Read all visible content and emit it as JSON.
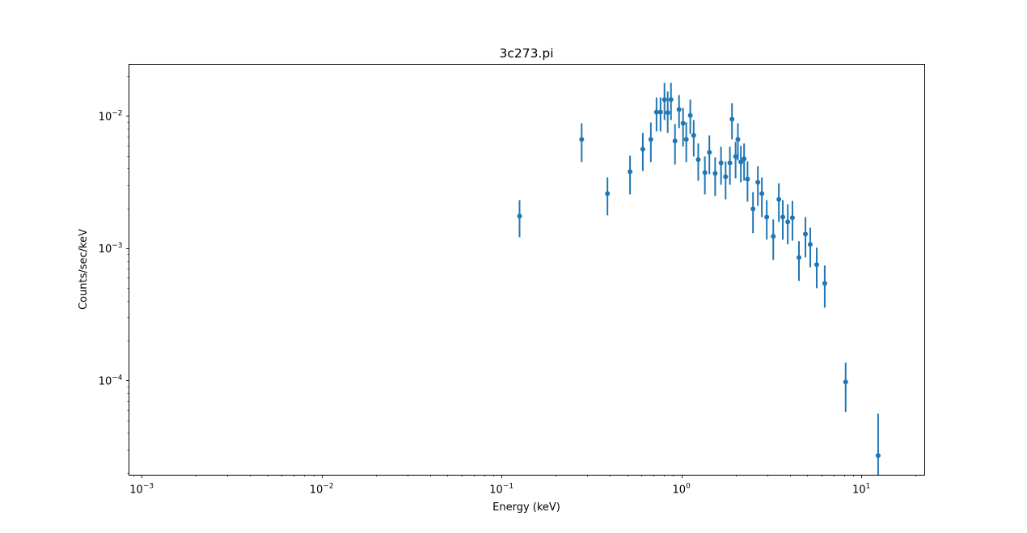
{
  "chart_data": {
    "type": "scatter",
    "subtype": "errorbar",
    "title": "3c273.pi",
    "xlabel": "Energy (keV)",
    "ylabel": "Counts/sec/keV",
    "xscale": "log",
    "yscale": "log",
    "xlim": [
      0.00085,
      22.5
    ],
    "ylim": [
      1.92e-05,
      0.0246
    ],
    "grid": false,
    "legend": null,
    "x_ticks": [
      {
        "value": 0.001,
        "base": "10",
        "exp": "−3"
      },
      {
        "value": 0.01,
        "base": "10",
        "exp": "−2"
      },
      {
        "value": 0.1,
        "base": "10",
        "exp": "−1"
      },
      {
        "value": 1,
        "base": "10",
        "exp": "0"
      },
      {
        "value": 10,
        "base": "10",
        "exp": "1"
      }
    ],
    "y_ticks": [
      {
        "value": 0.01,
        "base": "10",
        "exp": "−2"
      },
      {
        "value": 0.001,
        "base": "10",
        "exp": "−3"
      },
      {
        "value": 0.0001,
        "base": "10",
        "exp": "−4"
      }
    ],
    "color": "#1f77b4",
    "series": [
      {
        "name": "3c273.pi",
        "points": [
          {
            "x": 0.126,
            "y": 0.00175,
            "ylo": 0.00121,
            "yhi": 0.00231
          },
          {
            "x": 0.279,
            "y": 0.00665,
            "ylo": 0.00448,
            "yhi": 0.00881
          },
          {
            "x": 0.388,
            "y": 0.00259,
            "ylo": 0.00177,
            "yhi": 0.00343
          },
          {
            "x": 0.518,
            "y": 0.00379,
            "ylo": 0.00255,
            "yhi": 0.00501
          },
          {
            "x": 0.61,
            "y": 0.00561,
            "ylo": 0.00384,
            "yhi": 0.00744
          },
          {
            "x": 0.676,
            "y": 0.00665,
            "ylo": 0.00448,
            "yhi": 0.00893
          },
          {
            "x": 0.727,
            "y": 0.0107,
            "ylo": 0.00765,
            "yhi": 0.0138
          },
          {
            "x": 0.765,
            "y": 0.0107,
            "ylo": 0.00765,
            "yhi": 0.0138
          },
          {
            "x": 0.805,
            "y": 0.0133,
            "ylo": 0.00932,
            "yhi": 0.0178
          },
          {
            "x": 0.839,
            "y": 0.0106,
            "ylo": 0.00744,
            "yhi": 0.0153
          },
          {
            "x": 0.875,
            "y": 0.0133,
            "ylo": 0.00932,
            "yhi": 0.0178
          },
          {
            "x": 0.921,
            "y": 0.00646,
            "ylo": 0.00429,
            "yhi": 0.00869
          },
          {
            "x": 0.97,
            "y": 0.0112,
            "ylo": 0.0081,
            "yhi": 0.0144
          },
          {
            "x": 1.021,
            "y": 0.00881,
            "ylo": 0.00586,
            "yhi": 0.0115
          },
          {
            "x": 1.064,
            "y": 0.00665,
            "ylo": 0.00448,
            "yhi": 0.00893
          },
          {
            "x": 1.12,
            "y": 0.0101,
            "ylo": 0.00733,
            "yhi": 0.0133
          },
          {
            "x": 1.17,
            "y": 0.00713,
            "ylo": 0.00494,
            "yhi": 0.00932
          },
          {
            "x": 1.24,
            "y": 0.00468,
            "ylo": 0.00324,
            "yhi": 0.0062
          },
          {
            "x": 1.35,
            "y": 0.00373,
            "ylo": 0.00255,
            "yhi": 0.00494
          },
          {
            "x": 1.43,
            "y": 0.00531,
            "ylo": 0.00363,
            "yhi": 0.00713
          },
          {
            "x": 1.54,
            "y": 0.00368,
            "ylo": 0.00248,
            "yhi": 0.00487
          },
          {
            "x": 1.66,
            "y": 0.00442,
            "ylo": 0.00302,
            "yhi": 0.00586
          },
          {
            "x": 1.76,
            "y": 0.00347,
            "ylo": 0.00234,
            "yhi": 0.00454
          },
          {
            "x": 1.86,
            "y": 0.00442,
            "ylo": 0.00302,
            "yhi": 0.00586
          },
          {
            "x": 1.91,
            "y": 0.00945,
            "ylo": 0.00665,
            "yhi": 0.0125
          },
          {
            "x": 2.0,
            "y": 0.00494,
            "ylo": 0.00338,
            "yhi": 0.00637
          },
          {
            "x": 2.06,
            "y": 0.00665,
            "ylo": 0.00461,
            "yhi": 0.00881
          },
          {
            "x": 2.14,
            "y": 0.00448,
            "ylo": 0.00315,
            "yhi": 0.00594
          },
          {
            "x": 2.23,
            "y": 0.00474,
            "ylo": 0.00324,
            "yhi": 0.0062
          },
          {
            "x": 2.33,
            "y": 0.00333,
            "ylo": 0.00225,
            "yhi": 0.00454
          },
          {
            "x": 2.5,
            "y": 0.00198,
            "ylo": 0.0013,
            "yhi": 0.00266
          },
          {
            "x": 2.66,
            "y": 0.00315,
            "ylo": 0.00209,
            "yhi": 0.00418
          },
          {
            "x": 2.8,
            "y": 0.00259,
            "ylo": 0.00172,
            "yhi": 0.00343
          },
          {
            "x": 2.98,
            "y": 0.00172,
            "ylo": 0.00116,
            "yhi": 0.00231
          },
          {
            "x": 3.24,
            "y": 0.00123,
            "ylo": 0.000815,
            "yhi": 0.00165
          },
          {
            "x": 3.48,
            "y": 0.00234,
            "ylo": 0.00158,
            "yhi": 0.0031
          },
          {
            "x": 3.66,
            "y": 0.00172,
            "ylo": 0.00116,
            "yhi": 0.00231
          },
          {
            "x": 3.9,
            "y": 0.00158,
            "ylo": 0.00107,
            "yhi": 0.00215
          },
          {
            "x": 4.14,
            "y": 0.0017,
            "ylo": 0.00114,
            "yhi": 0.00228
          },
          {
            "x": 4.5,
            "y": 0.000851,
            "ylo": 0.000565,
            "yhi": 0.00113
          },
          {
            "x": 4.89,
            "y": 0.00128,
            "ylo": 0.000851,
            "yhi": 0.00172
          },
          {
            "x": 5.2,
            "y": 0.00107,
            "ylo": 0.000718,
            "yhi": 0.00143
          },
          {
            "x": 5.65,
            "y": 0.00075,
            "ylo": 0.000498,
            "yhi": 0.00101
          },
          {
            "x": 6.26,
            "y": 0.000542,
            "ylo": 0.000355,
            "yhi": 0.00074
          },
          {
            "x": 8.18,
            "y": 9.73e-05,
            "ylo": 5.77e-05,
            "yhi": 0.000136
          },
          {
            "x": 12.4,
            "y": 2.7e-05,
            "ylo": 1e-06,
            "yhi": 5.61e-05
          }
        ]
      }
    ]
  }
}
